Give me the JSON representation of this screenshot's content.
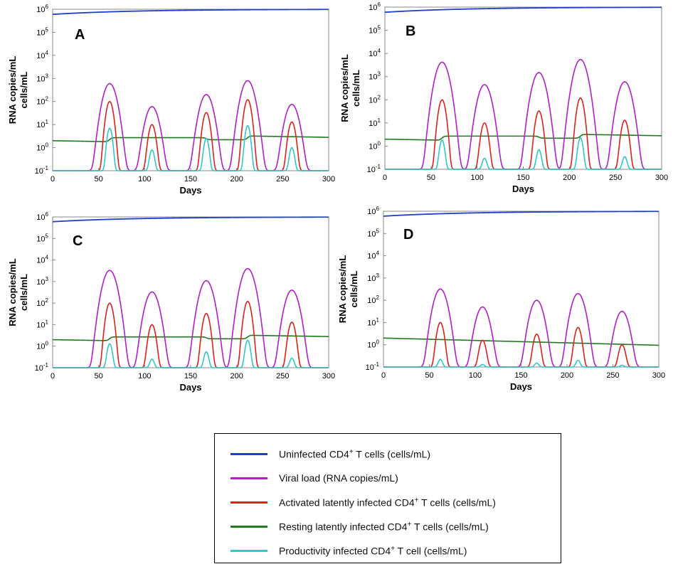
{
  "chart_data": [
    {
      "type": "line",
      "panel_letter": "A",
      "xlabel": "Days",
      "ylabel": [
        "RNA copies/mL",
        "cells/mL"
      ],
      "xlim": [
        0,
        300
      ],
      "ylim_log10": [
        -1,
        6
      ],
      "y_scale": "log",
      "xticks": [
        0,
        50,
        100,
        150,
        200,
        250,
        300
      ],
      "uninfected": {
        "start": 600000,
        "end": 1000000
      },
      "resting": {
        "start": 2.0,
        "pre": 1.8,
        "steps": [
          [
            62,
            2.7
          ],
          [
            167,
            2.2
          ],
          [
            212,
            3.2
          ]
        ],
        "end": 2.8
      },
      "pulses": [
        {
          "day": 62,
          "viral": 600,
          "activated": 100,
          "productive": 7
        },
        {
          "day": 108,
          "viral": 60,
          "activated": 10,
          "productive": 0.8
        },
        {
          "day": 167,
          "viral": 200,
          "activated": 33,
          "productive": 2.5
        },
        {
          "day": 212,
          "viral": 800,
          "activated": 120,
          "productive": 9
        },
        {
          "day": 260,
          "viral": 75,
          "activated": 13,
          "productive": 1.0
        }
      ],
      "floor": 0.1
    },
    {
      "type": "line",
      "panel_letter": "B",
      "xlabel": "Days",
      "ylabel": [
        "RNA copies/mL",
        "cells/mL"
      ],
      "xlim": [
        0,
        300
      ],
      "ylim_log10": [
        -1,
        6
      ],
      "y_scale": "log",
      "xticks": [
        0,
        50,
        100,
        150,
        200,
        250,
        300
      ],
      "uninfected": {
        "start": 600000,
        "end": 1000000
      },
      "resting": {
        "start": 2.0,
        "pre": 1.8,
        "steps": [
          [
            62,
            2.7
          ],
          [
            167,
            2.2
          ],
          [
            212,
            3.2
          ]
        ],
        "end": 2.8
      },
      "pulses": [
        {
          "day": 62,
          "viral": 4200,
          "activated": 100,
          "productive": 1.8
        },
        {
          "day": 108,
          "viral": 450,
          "activated": 10,
          "productive": 0.3
        },
        {
          "day": 167,
          "viral": 1500,
          "activated": 33,
          "productive": 0.7
        },
        {
          "day": 212,
          "viral": 5500,
          "activated": 120,
          "productive": 2.3
        },
        {
          "day": 260,
          "viral": 600,
          "activated": 13,
          "productive": 0.35
        }
      ],
      "floor": 0.1
    },
    {
      "type": "line",
      "panel_letter": "C",
      "xlabel": "Days",
      "ylabel": [
        "RNA copies/mL",
        "cells/mL"
      ],
      "xlim": [
        0,
        300
      ],
      "ylim_log10": [
        -1,
        6
      ],
      "y_scale": "log",
      "xticks": [
        0,
        50,
        100,
        150,
        200,
        250,
        300
      ],
      "uninfected": {
        "start": 600000,
        "end": 1000000
      },
      "resting": {
        "start": 2.0,
        "pre": 1.8,
        "steps": [
          [
            62,
            2.7
          ],
          [
            167,
            2.2
          ],
          [
            212,
            3.2
          ]
        ],
        "end": 2.8
      },
      "pulses": [
        {
          "day": 62,
          "viral": 3300,
          "activated": 100,
          "productive": 1.3
        },
        {
          "day": 108,
          "viral": 330,
          "activated": 10,
          "productive": 0.25
        },
        {
          "day": 167,
          "viral": 1100,
          "activated": 33,
          "productive": 0.55
        },
        {
          "day": 212,
          "viral": 4000,
          "activated": 120,
          "productive": 1.9
        },
        {
          "day": 260,
          "viral": 400,
          "activated": 13,
          "productive": 0.28
        }
      ],
      "floor": 0.1
    },
    {
      "type": "line",
      "panel_letter": "D",
      "xlabel": "Days",
      "ylabel": [
        "RNA copies/mL",
        "cells/mL"
      ],
      "xlim": [
        0,
        300
      ],
      "ylim_log10": [
        -1,
        6
      ],
      "y_scale": "log",
      "xticks": [
        0,
        50,
        100,
        150,
        200,
        250,
        300
      ],
      "uninfected": {
        "start": 600000,
        "end": 1000000
      },
      "resting": {
        "start": 2.0,
        "pre": 2.0,
        "steps": [],
        "end": 0.95
      },
      "pulses": [
        {
          "day": 62,
          "viral": 320,
          "activated": 10,
          "productive": 0.22
        },
        {
          "day": 108,
          "viral": 50,
          "activated": 1.6,
          "productive": 0.13
        },
        {
          "day": 167,
          "viral": 100,
          "activated": 3.0,
          "productive": 0.15
        },
        {
          "day": 212,
          "viral": 200,
          "activated": 6.0,
          "productive": 0.2
        },
        {
          "day": 260,
          "viral": 32,
          "activated": 1.0,
          "productive": 0.12
        }
      ],
      "floor": 0.1
    }
  ],
  "legend": {
    "placement": "bottom-center",
    "items": [
      {
        "key": "uninfected",
        "label_pre": "Uninfected CD4",
        "sup": "+",
        "label_post": " T cells (cells/mL)",
        "color": "#1f3fd0"
      },
      {
        "key": "viral",
        "label_pre": "Viral load (RNA copies/mL)",
        "sup": "",
        "label_post": "",
        "color": "#b21fc9"
      },
      {
        "key": "activated",
        "label_pre": "Activated latently infected CD4",
        "sup": "+",
        "label_post": " T cells (cells/mL)",
        "color": "#e0201c"
      },
      {
        "key": "resting",
        "label_pre": "Resting latently infected CD4",
        "sup": "+",
        "label_post": " T cells (cells/mL)",
        "color": "#1f7a1f"
      },
      {
        "key": "productive",
        "label_pre": "Productivity infected CD4",
        "sup": "+",
        "label_post": " T cell (cells/mL)",
        "color": "#2ec8c8"
      }
    ]
  },
  "colors": {
    "uninfected": "#1f3fd0",
    "viral": "#b21fc9",
    "activated": "#e0201c",
    "resting": "#1f7a1f",
    "productive": "#2ec8c8",
    "axis": "#888888"
  }
}
